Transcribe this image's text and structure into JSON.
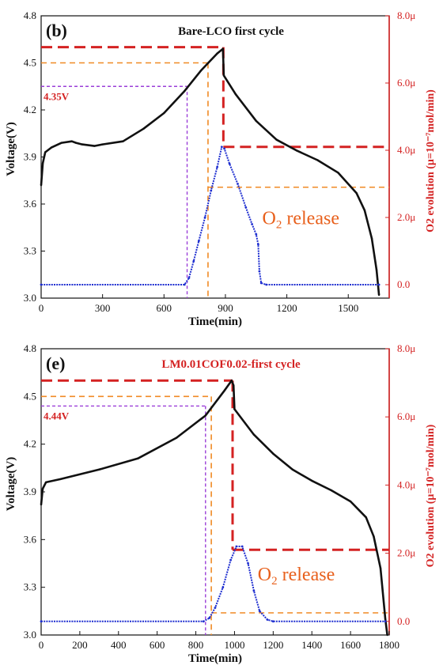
{
  "colors": {
    "voltage": "#111111",
    "o2": "#1f2fd0",
    "right_axis": "#d42222",
    "orange_guide": "#f08a24",
    "purple_guide": "#9b3fd8",
    "red_guide": "#d42222",
    "o2_label": "#e8601c"
  },
  "chart_data": [
    {
      "type": "line",
      "panel_label": "(b)",
      "title": "Bare-LCO first cycle",
      "xlabel": "Time(min)",
      "ylabel": "Voltage(V)",
      "ylabel_right": "O2 evolution (μ=10⁻⁷mol/min)",
      "xlim": [
        0,
        1700
      ],
      "ylim": [
        3.0,
        4.8
      ],
      "ylim_right": [
        -0.4,
        8.0
      ],
      "x_ticks": [
        0,
        300,
        600,
        900,
        1200,
        1500
      ],
      "y_ticks": [
        3.0,
        3.3,
        3.6,
        3.9,
        4.2,
        4.5,
        4.8
      ],
      "y_right_ticks": [
        "0.0",
        "2.0μ",
        "4.0μ",
        "6.0μ",
        "8.0μ"
      ],
      "y_right_values": [
        0,
        2,
        4,
        6,
        8
      ],
      "voltage_annotation": "4.35V",
      "o2_annotation": "O2 release",
      "series": [
        {
          "axis": "left",
          "points": [
            [
              0,
              3.72
            ],
            [
              8,
              3.86
            ],
            [
              20,
              3.93
            ],
            [
              50,
              3.96
            ],
            [
              100,
              3.99
            ],
            [
              150,
              4.0
            ],
            [
              170,
              3.99
            ],
            [
              200,
              3.98
            ],
            [
              260,
              3.97
            ],
            [
              300,
              3.98
            ],
            [
              400,
              4.0
            ],
            [
              500,
              4.08
            ],
            [
              600,
              4.18
            ],
            [
              700,
              4.32
            ],
            [
              780,
              4.45
            ],
            [
              860,
              4.56
            ],
            [
              888,
              4.59
            ],
            [
              892,
              4.42
            ],
            [
              950,
              4.3
            ],
            [
              1050,
              4.13
            ],
            [
              1150,
              4.01
            ],
            [
              1250,
              3.94
            ],
            [
              1350,
              3.88
            ],
            [
              1450,
              3.8
            ],
            [
              1540,
              3.67
            ],
            [
              1580,
              3.56
            ],
            [
              1615,
              3.38
            ],
            [
              1638,
              3.18
            ],
            [
              1650,
              3.02
            ]
          ]
        },
        {
          "axis": "right",
          "points": [
            [
              0,
              0
            ],
            [
              700,
              0
            ],
            [
              722,
              0.2
            ],
            [
              745,
              0.7
            ],
            [
              770,
              1.3
            ],
            [
              800,
              2.0
            ],
            [
              830,
              2.8
            ],
            [
              860,
              3.5
            ],
            [
              882,
              4.1
            ],
            [
              895,
              4.05
            ],
            [
              920,
              3.6
            ],
            [
              960,
              3.0
            ],
            [
              1000,
              2.3
            ],
            [
              1030,
              1.8
            ],
            [
              1050,
              1.5
            ],
            [
              1060,
              1.2
            ],
            [
              1066,
              0.4
            ],
            [
              1075,
              0.05
            ],
            [
              1100,
              0
            ],
            [
              1650,
              0
            ]
          ]
        }
      ],
      "guides": {
        "orange_h_left": 4.5,
        "orange_v_x": 815,
        "orange_h_right_o2": 2.9,
        "purple_h": 4.35,
        "purple_v_x": 713,
        "red_h_left": 4.6,
        "red_v_x": 890,
        "red_h_right_o2": 4.1
      }
    },
    {
      "type": "line",
      "panel_label": "(e)",
      "title": "LM0.01COF0.02-first cycle",
      "xlabel": "Time(min)",
      "ylabel": "Voltage(V)",
      "ylabel_right": "O2 evolution (μ=10⁻⁷mol/min)",
      "xlim": [
        0,
        1800
      ],
      "ylim": [
        3.0,
        4.8
      ],
      "ylim_right": [
        -0.4,
        8.0
      ],
      "x_ticks": [
        0,
        200,
        400,
        600,
        800,
        1000,
        1200,
        1400,
        1600,
        1800
      ],
      "y_ticks": [
        3.0,
        3.3,
        3.6,
        3.9,
        4.2,
        4.5,
        4.8
      ],
      "y_right_ticks": [
        "0.0",
        "2.0μ",
        "4.0μ",
        "6.0μ",
        "8.0μ"
      ],
      "y_right_values": [
        0,
        2,
        4,
        6,
        8
      ],
      "voltage_annotation": "4.44V",
      "o2_annotation": "O2 release",
      "series": [
        {
          "axis": "left",
          "points": [
            [
              0,
              3.82
            ],
            [
              8,
              3.92
            ],
            [
              25,
              3.96
            ],
            [
              100,
              3.98
            ],
            [
              300,
              4.04
            ],
            [
              500,
              4.11
            ],
            [
              700,
              4.24
            ],
            [
              850,
              4.38
            ],
            [
              950,
              4.54
            ],
            [
              985,
              4.6
            ],
            [
              995,
              4.57
            ],
            [
              1000,
              4.42
            ],
            [
              1100,
              4.26
            ],
            [
              1200,
              4.14
            ],
            [
              1300,
              4.04
            ],
            [
              1400,
              3.97
            ],
            [
              1500,
              3.91
            ],
            [
              1600,
              3.84
            ],
            [
              1680,
              3.74
            ],
            [
              1720,
              3.62
            ],
            [
              1755,
              3.42
            ],
            [
              1780,
              3.1
            ],
            [
              1790,
              3.0
            ]
          ]
        },
        {
          "axis": "right",
          "points": [
            [
              0,
              0
            ],
            [
              840,
              0
            ],
            [
              870,
              0.1
            ],
            [
              900,
              0.4
            ],
            [
              940,
              1.0
            ],
            [
              980,
              1.8
            ],
            [
              1010,
              2.2
            ],
            [
              1040,
              2.2
            ],
            [
              1070,
              1.7
            ],
            [
              1100,
              0.9
            ],
            [
              1130,
              0.3
            ],
            [
              1170,
              0.05
            ],
            [
              1200,
              0
            ],
            [
              1780,
              0
            ]
          ]
        }
      ],
      "guides": {
        "orange_h_left": 4.5,
        "orange_v_x": 880,
        "orange_h_right_o2": 0.25,
        "purple_h": 4.44,
        "purple_v_x": 850,
        "red_h_left": 4.6,
        "red_v_x": 990,
        "red_h_right_o2": 2.1
      }
    }
  ]
}
